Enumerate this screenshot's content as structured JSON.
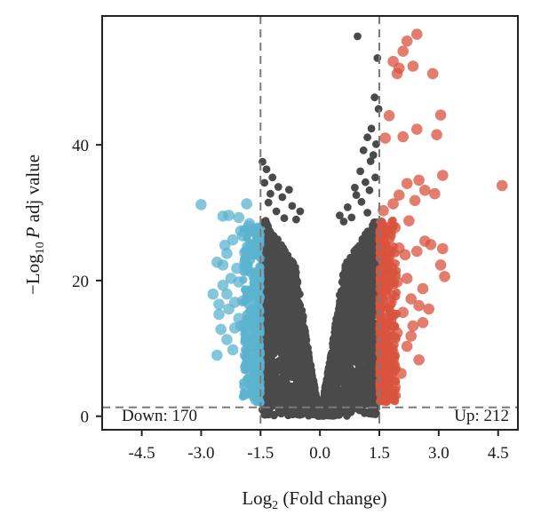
{
  "chart_data": {
    "type": "scatter",
    "title": "",
    "xlabel": {
      "prefix": "Log",
      "sub": "2",
      "rest": " (Fold change)"
    },
    "ylabel": {
      "prefix": "−Log",
      "sub": "10",
      "italic": "P",
      "rest": " adj value"
    },
    "xlim": [
      -5.5,
      5.0
    ],
    "ylim": [
      -2,
      59
    ],
    "xticks": [
      -4.5,
      -3.0,
      -1.5,
      0.0,
      1.5,
      3.0,
      4.5
    ],
    "xtick_labels": [
      "-4.5",
      "-3.0",
      "-1.5",
      "0.0",
      "1.5",
      "3.0",
      "4.5"
    ],
    "yticks": [
      0,
      20,
      40
    ],
    "ytick_labels": [
      "0",
      "20",
      "40"
    ],
    "thresholds": {
      "fold_change": [
        -1.5,
        1.5
      ],
      "p_adj_line": 1.3
    },
    "annotations": {
      "down": "Down: 170",
      "up": "Up: 212"
    },
    "colors": {
      "down": "#5bb3cf",
      "up": "#d9533e",
      "ns": "#4a4a4a",
      "axis": "#222222",
      "threshold": "#7a7a7a"
    },
    "series": [
      {
        "category": "down",
        "points": [
          [
            -3.0,
            31.2
          ],
          [
            -2.45,
            29.5
          ],
          [
            -2.3,
            29.6
          ],
          [
            -2.05,
            29.3
          ],
          [
            -1.85,
            31.3
          ],
          [
            -2.6,
            22.7
          ],
          [
            -2.4,
            25.2
          ],
          [
            -2.35,
            24.0
          ],
          [
            -2.2,
            26.0
          ],
          [
            -2.0,
            27.3
          ],
          [
            -1.8,
            28.0
          ],
          [
            -1.9,
            24.1
          ],
          [
            -2.7,
            18.0
          ],
          [
            -2.1,
            21.8
          ],
          [
            -2.45,
            19.3
          ],
          [
            -2.55,
            15.0
          ],
          [
            -2.3,
            15.8
          ],
          [
            -2.15,
            16.8
          ],
          [
            -1.95,
            17.0
          ],
          [
            -2.5,
            12.8
          ],
          [
            -2.35,
            11.3
          ],
          [
            -2.0,
            13.3
          ],
          [
            -2.6,
            9.0
          ],
          [
            -2.2,
            9.8
          ],
          [
            -1.8,
            10.2
          ],
          [
            -1.65,
            6.0
          ],
          [
            -1.72,
            4.2
          ],
          [
            -1.62,
            2.4
          ],
          [
            -2.45,
            22.3
          ],
          [
            -2.25,
            20.3
          ],
          [
            -2.05,
            19.8
          ],
          [
            -1.85,
            22.3
          ],
          [
            -1.75,
            25.2
          ],
          [
            -1.65,
            18.8
          ],
          [
            -2.05,
            14.4
          ],
          [
            -1.85,
            12.3
          ],
          [
            -1.68,
            15.8
          ],
          [
            -1.6,
            20.6
          ],
          [
            -1.75,
            8.2
          ],
          [
            -1.62,
            11.3
          ],
          [
            -2.35,
            18.0
          ],
          [
            -2.15,
            13.0
          ],
          [
            -1.95,
            26.6
          ],
          [
            -1.78,
            28.4
          ],
          [
            -2.55,
            16.5
          ]
        ]
      },
      {
        "category": "up",
        "points": [
          [
            2.45,
            56.3
          ],
          [
            2.2,
            55.3
          ],
          [
            2.1,
            53.8
          ],
          [
            1.85,
            52.3
          ],
          [
            2.0,
            51.3
          ],
          [
            2.35,
            51.6
          ],
          [
            1.95,
            50.5
          ],
          [
            2.85,
            50.5
          ],
          [
            1.75,
            44.3
          ],
          [
            3.05,
            44.4
          ],
          [
            2.45,
            42.3
          ],
          [
            1.65,
            41.0
          ],
          [
            2.95,
            41.5
          ],
          [
            2.1,
            41.2
          ],
          [
            4.6,
            34.0
          ],
          [
            3.1,
            35.5
          ],
          [
            2.5,
            34.8
          ],
          [
            2.2,
            34.3
          ],
          [
            2.65,
            33.3
          ],
          [
            2.9,
            32.8
          ],
          [
            2.0,
            32.6
          ],
          [
            2.4,
            31.8
          ],
          [
            1.85,
            31.3
          ],
          [
            1.6,
            30.3
          ],
          [
            2.25,
            28.8
          ],
          [
            1.9,
            27.8
          ],
          [
            1.65,
            27.3
          ],
          [
            2.65,
            25.8
          ],
          [
            2.8,
            25.3
          ],
          [
            3.1,
            24.7
          ],
          [
            2.45,
            24.3
          ],
          [
            2.15,
            23.8
          ],
          [
            1.75,
            23.2
          ],
          [
            3.05,
            22.3
          ],
          [
            3.15,
            20.6
          ],
          [
            2.2,
            20.3
          ],
          [
            1.95,
            19.8
          ],
          [
            2.6,
            18.8
          ],
          [
            1.6,
            19.3
          ],
          [
            2.3,
            17.3
          ],
          [
            1.8,
            16.8
          ],
          [
            2.5,
            16.3
          ],
          [
            2.1,
            15.3
          ],
          [
            2.75,
            15.8
          ],
          [
            1.7,
            14.3
          ],
          [
            2.35,
            13.3
          ],
          [
            1.95,
            12.3
          ],
          [
            1.65,
            11.3
          ],
          [
            2.2,
            10.3
          ],
          [
            1.85,
            9.3
          ],
          [
            2.5,
            8.3
          ],
          [
            1.7,
            7.3
          ],
          [
            2.05,
            6.3
          ],
          [
            1.6,
            5.3
          ],
          [
            1.9,
            4.3
          ],
          [
            1.75,
            3.3
          ],
          [
            2.3,
            11.8
          ],
          [
            2.6,
            13.8
          ],
          [
            1.65,
            21.8
          ],
          [
            2.0,
            24.8
          ]
        ]
      },
      {
        "category": "ns",
        "points": [
          [
            0.95,
            56.0
          ],
          [
            1.45,
            52.8
          ],
          [
            1.38,
            47.0
          ],
          [
            1.48,
            45.3
          ],
          [
            1.3,
            42.4
          ],
          [
            1.2,
            41.1
          ],
          [
            1.42,
            40.1
          ],
          [
            1.1,
            39.2
          ],
          [
            1.35,
            38.5
          ],
          [
            1.28,
            37.6
          ],
          [
            1.02,
            36.1
          ],
          [
            1.4,
            35.2
          ],
          [
            1.15,
            34.5
          ],
          [
            0.88,
            33.7
          ],
          [
            1.25,
            33.3
          ],
          [
            0.92,
            32.6
          ],
          [
            1.05,
            31.6
          ],
          [
            -1.45,
            37.5
          ],
          [
            -1.35,
            36.4
          ],
          [
            -1.2,
            35.2
          ],
          [
            -1.4,
            34.4
          ],
          [
            -1.05,
            33.8
          ],
          [
            -0.78,
            33.4
          ],
          [
            -1.25,
            32.8
          ],
          [
            -0.95,
            32.3
          ],
          [
            -1.3,
            31.5
          ],
          [
            -0.7,
            31.0
          ],
          [
            -1.1,
            30.2
          ],
          [
            -0.5,
            30.2
          ],
          [
            0.5,
            29.6
          ],
          [
            0.7,
            30.8
          ],
          [
            -0.6,
            29.0
          ],
          [
            0.6,
            28.7
          ],
          [
            0.8,
            29.3
          ],
          [
            1.2,
            30.0
          ],
          [
            -0.9,
            29.2
          ],
          [
            -1.4,
            28.5
          ],
          [
            1.35,
            28.1
          ]
        ]
      }
    ]
  }
}
